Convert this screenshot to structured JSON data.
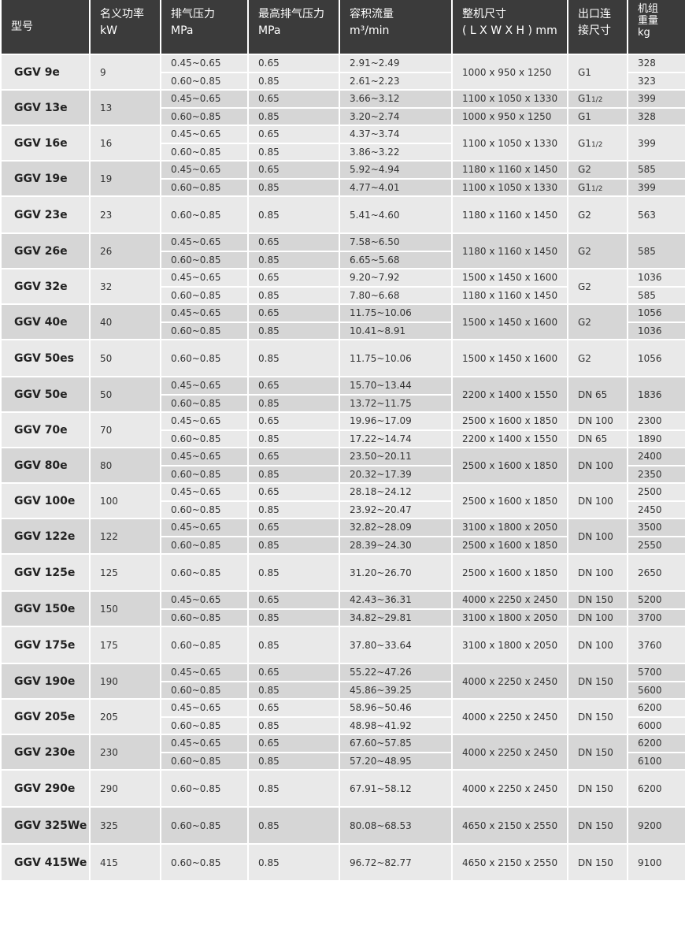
{
  "header": {
    "model": "型号",
    "power": [
      "名义功率",
      "kW"
    ],
    "pressure": [
      "排气压力",
      "MPa"
    ],
    "max_pressure": [
      "最高排气压力",
      "MPa"
    ],
    "flow": [
      "容积流量",
      "m³/min"
    ],
    "dims": [
      "整机尺寸",
      "( L X W X H ) mm"
    ],
    "outlet": [
      "出口连",
      "接尺寸"
    ],
    "weight": [
      "机组",
      "重量",
      "kg"
    ]
  },
  "colors": {
    "header_bg": "#3b3b3b",
    "row_light": "#e9e9e9",
    "row_dark": "#d6d6d6"
  },
  "groups": [
    {
      "model": "GGV 9e",
      "power": "9",
      "merged": [
        "dims",
        "outlet"
      ],
      "rows": [
        {
          "pressure": "0.45~0.65",
          "max": "0.65",
          "flow": "2.91~2.49",
          "dims": "1000 x 950 x 1250",
          "outlet": "G1",
          "weight": "328"
        },
        {
          "pressure": "0.60~0.85",
          "max": "0.85",
          "flow": "2.61~2.23",
          "weight": "323"
        }
      ]
    },
    {
      "model": "GGV 13e",
      "power": "13",
      "merged": [],
      "rows": [
        {
          "pressure": "0.45~0.65",
          "max": "0.65",
          "flow": "3.66~3.12",
          "dims": "1100 x 1050 x 1330",
          "outlet": "G1 1/2",
          "weight": "399"
        },
        {
          "pressure": "0.60~0.85",
          "max": "0.85",
          "flow": "3.20~2.74",
          "dims": "1000 x 950 x 1250",
          "outlet": "G1",
          "weight": "328"
        }
      ]
    },
    {
      "model": "GGV 16e",
      "power": "16",
      "merged": [
        "dims",
        "outlet",
        "weight"
      ],
      "rows": [
        {
          "pressure": "0.45~0.65",
          "max": "0.65",
          "flow": "4.37~3.74",
          "dims": "1100 x 1050 x 1330",
          "outlet": "G1 1/2",
          "weight": "399"
        },
        {
          "pressure": "0.60~0.85",
          "max": "0.85",
          "flow": "3.86~3.22"
        }
      ]
    },
    {
      "model": "GGV 19e",
      "power": "19",
      "merged": [],
      "rows": [
        {
          "pressure": "0.45~0.65",
          "max": "0.65",
          "flow": "5.92~4.94",
          "dims": "1180 x 1160 x 1450",
          "outlet": "G2",
          "weight": "585"
        },
        {
          "pressure": "0.60~0.85",
          "max": "0.85",
          "flow": "4.77~4.01",
          "dims": "1100 x 1050 x 1330",
          "outlet": "G1 1/2",
          "weight": "399"
        }
      ]
    },
    {
      "model": "GGV 23e",
      "power": "23",
      "merged": [],
      "rows": [
        {
          "pressure": "0.60~0.85",
          "max": "0.85",
          "flow": "5.41~4.60",
          "dims": "1180 x 1160 x 1450",
          "outlet": "G2",
          "weight": "563"
        }
      ]
    },
    {
      "model": "GGV 26e",
      "power": "26",
      "merged": [
        "dims",
        "outlet",
        "weight"
      ],
      "rows": [
        {
          "pressure": "0.45~0.65",
          "max": "0.65",
          "flow": "7.58~6.50",
          "dims": "1180 x 1160 x 1450",
          "outlet": "G2",
          "weight": "585"
        },
        {
          "pressure": "0.60~0.85",
          "max": "0.85",
          "flow": "6.65~5.68"
        }
      ]
    },
    {
      "model": "GGV 32e",
      "power": "32",
      "merged": [
        "outlet"
      ],
      "rows": [
        {
          "pressure": "0.45~0.65",
          "max": "0.65",
          "flow": "9.20~7.92",
          "dims": "1500 x 1450 x 1600",
          "outlet": "G2",
          "weight": "1036"
        },
        {
          "pressure": "0.60~0.85",
          "max": "0.85",
          "flow": "7.80~6.68",
          "dims": "1180 x 1160 x 1450",
          "weight": "585"
        }
      ]
    },
    {
      "model": "GGV 40e",
      "power": "40",
      "merged": [
        "dims",
        "outlet"
      ],
      "rows": [
        {
          "pressure": "0.45~0.65",
          "max": "0.65",
          "flow": "11.75~10.06",
          "dims": "1500 x 1450 x 1600",
          "outlet": "G2",
          "weight": "1056"
        },
        {
          "pressure": "0.60~0.85",
          "max": "0.85",
          "flow": "10.41~8.91",
          "weight": "1036"
        }
      ]
    },
    {
      "model": "GGV 50es",
      "power": "50",
      "merged": [],
      "rows": [
        {
          "pressure": "0.60~0.85",
          "max": "0.85",
          "flow": "11.75~10.06",
          "dims": "1500 x 1450 x 1600",
          "outlet": "G2",
          "weight": "1056"
        }
      ]
    },
    {
      "model": "GGV 50e",
      "power": "50",
      "merged": [
        "dims",
        "outlet",
        "weight"
      ],
      "rows": [
        {
          "pressure": "0.45~0.65",
          "max": "0.65",
          "flow": "15.70~13.44",
          "dims": "2200 x 1400 x 1550",
          "outlet": "DN 65",
          "weight": "1836"
        },
        {
          "pressure": "0.60~0.85",
          "max": "0.85",
          "flow": "13.72~11.75"
        }
      ]
    },
    {
      "model": "GGV 70e",
      "power": "70",
      "merged": [],
      "rows": [
        {
          "pressure": "0.45~0.65",
          "max": "0.65",
          "flow": "19.96~17.09",
          "dims": "2500 x 1600 x 1850",
          "outlet": "DN 100",
          "weight": "2300"
        },
        {
          "pressure": "0.60~0.85",
          "max": "0.85",
          "flow": "17.22~14.74",
          "dims": "2200 x 1400 x 1550",
          "outlet": "DN 65",
          "weight": "1890"
        }
      ]
    },
    {
      "model": "GGV 80e",
      "power": "80",
      "merged": [
        "dims",
        "outlet"
      ],
      "rows": [
        {
          "pressure": "0.45~0.65",
          "max": "0.65",
          "flow": "23.50~20.11",
          "dims": "2500 x 1600 x 1850",
          "outlet": "DN 100",
          "weight": "2400"
        },
        {
          "pressure": "0.60~0.85",
          "max": "0.85",
          "flow": "20.32~17.39",
          "weight": "2350"
        }
      ]
    },
    {
      "model": "GGV 100e",
      "power": "100",
      "merged": [
        "dims",
        "outlet"
      ],
      "rows": [
        {
          "pressure": "0.45~0.65",
          "max": "0.65",
          "flow": "28.18~24.12",
          "dims": "2500 x 1600 x 1850",
          "outlet": "DN 100",
          "weight": "2500"
        },
        {
          "pressure": "0.60~0.85",
          "max": "0.85",
          "flow": "23.92~20.47",
          "weight": "2450"
        }
      ]
    },
    {
      "model": "GGV 122e",
      "power": "122",
      "merged": [
        "outlet"
      ],
      "rows": [
        {
          "pressure": "0.45~0.65",
          "max": "0.65",
          "flow": "32.82~28.09",
          "dims": "3100 x 1800 x 2050",
          "outlet": "DN 100",
          "weight": "3500"
        },
        {
          "pressure": "0.60~0.85",
          "max": "0.85",
          "flow": "28.39~24.30",
          "dims": "2500 x 1600 x 1850",
          "weight": "2550"
        }
      ]
    },
    {
      "model": "GGV 125e",
      "power": "125",
      "merged": [],
      "rows": [
        {
          "pressure": "0.60~0.85",
          "max": "0.85",
          "flow": "31.20~26.70",
          "dims": "2500 x 1600 x 1850",
          "outlet": "DN 100",
          "weight": "2650"
        }
      ]
    },
    {
      "model": "GGV 150e",
      "power": "150",
      "merged": [],
      "rows": [
        {
          "pressure": "0.45~0.65",
          "max": "0.65",
          "flow": "42.43~36.31",
          "dims": "4000 x 2250 x 2450",
          "outlet": "DN 150",
          "weight": "5200"
        },
        {
          "pressure": "0.60~0.85",
          "max": "0.85",
          "flow": "34.82~29.81",
          "dims": "3100 x 1800 x 2050",
          "outlet": "DN 100",
          "weight": "3700"
        }
      ]
    },
    {
      "model": "GGV 175e",
      "power": "175",
      "merged": [],
      "rows": [
        {
          "pressure": "0.60~0.85",
          "max": "0.85",
          "flow": "37.80~33.64",
          "dims": "3100 x 1800 x 2050",
          "outlet": "DN 100",
          "weight": "3760"
        }
      ]
    },
    {
      "model": "GGV 190e",
      "power": "190",
      "merged": [
        "dims",
        "outlet"
      ],
      "rows": [
        {
          "pressure": "0.45~0.65",
          "max": "0.65",
          "flow": "55.22~47.26",
          "dims": "4000 x 2250 x 2450",
          "outlet": "DN 150",
          "weight": "5700"
        },
        {
          "pressure": "0.60~0.85",
          "max": "0.85",
          "flow": "45.86~39.25",
          "weight": "5600"
        }
      ]
    },
    {
      "model": "GGV 205e",
      "power": "205",
      "merged": [
        "dims",
        "outlet"
      ],
      "rows": [
        {
          "pressure": "0.45~0.65",
          "max": "0.65",
          "flow": "58.96~50.46",
          "dims": "4000 x 2250 x 2450",
          "outlet": "DN 150",
          "weight": "6200"
        },
        {
          "pressure": "0.60~0.85",
          "max": "0.85",
          "flow": "48.98~41.92",
          "weight": "6000"
        }
      ]
    },
    {
      "model": "GGV 230e",
      "power": "230",
      "merged": [
        "dims",
        "outlet"
      ],
      "rows": [
        {
          "pressure": "0.45~0.65",
          "max": "0.65",
          "flow": "67.60~57.85",
          "dims": "4000 x 2250 x 2450",
          "outlet": "DN 150",
          "weight": "6200"
        },
        {
          "pressure": "0.60~0.85",
          "max": "0.85",
          "flow": "57.20~48.95",
          "weight": "6100"
        }
      ]
    },
    {
      "model": "GGV 290e",
      "power": "290",
      "merged": [],
      "rows": [
        {
          "pressure": "0.60~0.85",
          "max": "0.85",
          "flow": "67.91~58.12",
          "dims": "4000 x 2250 x 2450",
          "outlet": "DN 150",
          "weight": "6200"
        }
      ]
    },
    {
      "model": "GGV 325We",
      "power": "325",
      "merged": [],
      "rows": [
        {
          "pressure": "0.60~0.85",
          "max": "0.85",
          "flow": "80.08~68.53",
          "dims": "4650 x 2150 x 2550",
          "outlet": "DN 150",
          "weight": "9200"
        }
      ]
    },
    {
      "model": "GGV 415We",
      "power": "415",
      "merged": [],
      "rows": [
        {
          "pressure": "0.60~0.85",
          "max": "0.85",
          "flow": "96.72~82.77",
          "dims": "4650 x 2150 x 2550",
          "outlet": "DN 150",
          "weight": "9100"
        }
      ]
    }
  ]
}
